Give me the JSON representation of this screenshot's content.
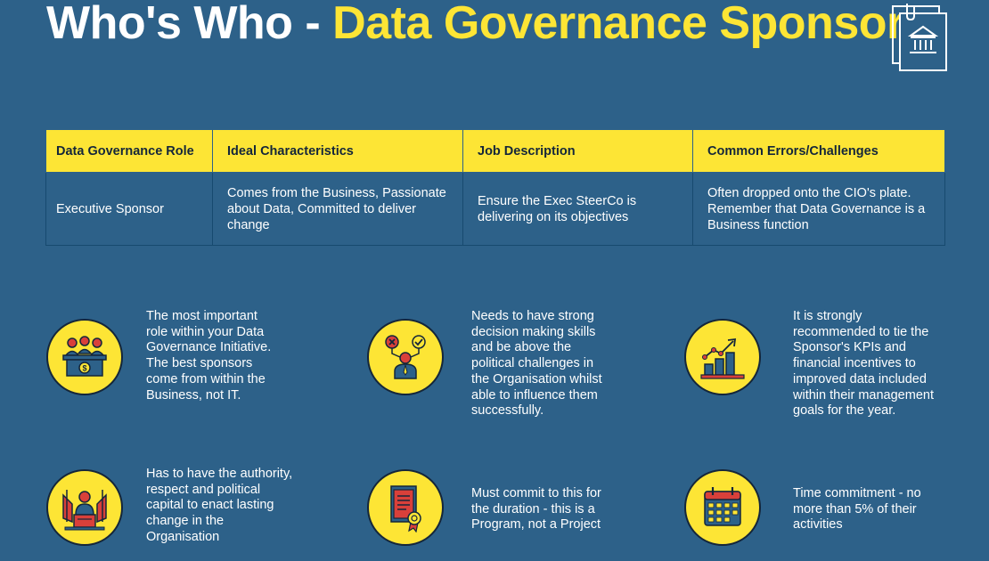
{
  "header": {
    "title_part1": "Who's Who - ",
    "title_part2": "Data Governance Sponsor",
    "icon": "building-document-icon"
  },
  "table": {
    "headers": [
      "Data Governance Role",
      "Ideal Characteristics",
      "Job Description",
      "Common Errors/Challenges"
    ],
    "rows": [
      [
        "Executive Sponsor",
        "Comes from the Business, Passionate about Data, Committed to deliver change",
        "Ensure the Exec SteerCo is delivering on its objectives",
        "Often dropped onto the CIO's plate. Remember that Data Governance is a Business function"
      ]
    ]
  },
  "features": [
    {
      "icon": "board-meeting-icon",
      "text": "The most important role within your Data Governance Initiative. The best sponsors come from within the Business, not IT."
    },
    {
      "icon": "decision-making-icon",
      "text": "Needs to have strong decision making skills and be above the political challenges in the Organisation whilst able to influence them successfully."
    },
    {
      "icon": "growth-chart-icon",
      "text": "It is strongly recommended to tie the Sponsor's KPIs and financial incentives to improved data included within their management goals for the year."
    },
    {
      "icon": "leader-speech-icon",
      "text": "Has to have the authority, respect and political capital to enact lasting change in the Organisation"
    },
    {
      "icon": "certificate-icon",
      "text": "Must commit to this for the duration - this is a Program, not a Project"
    },
    {
      "icon": "calendar-icon",
      "text": "Time commitment - no more than 5% of their activities"
    }
  ],
  "colors": {
    "background": "#2d6189",
    "accent": "#fde535",
    "dark": "#14263a",
    "red": "#d9403a"
  }
}
